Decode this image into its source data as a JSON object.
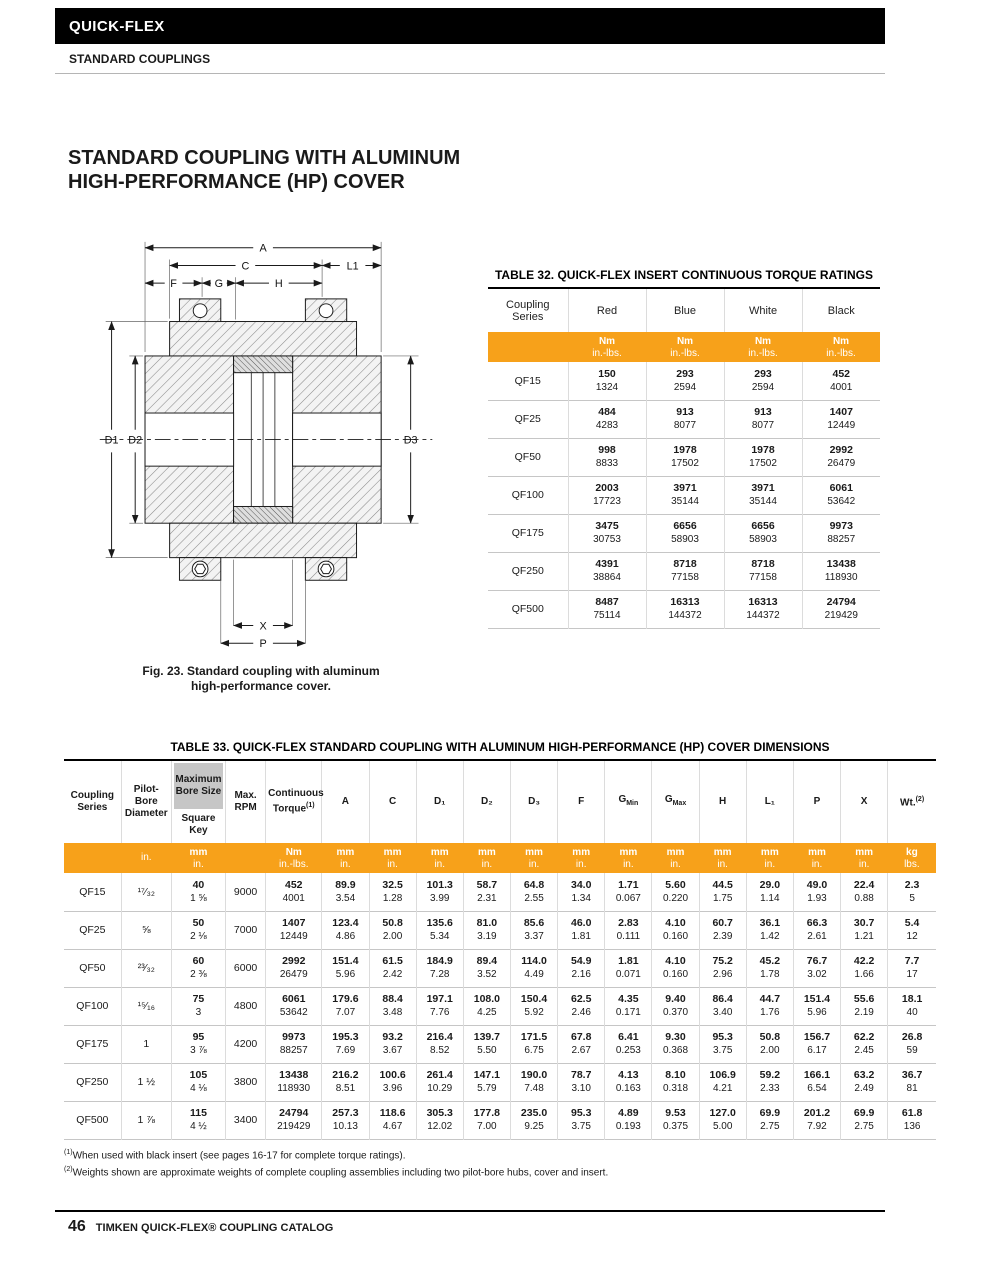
{
  "colors": {
    "accent_orange": "#F7A11A",
    "masthead_black": "#000000",
    "shaded_gray": "#C6C6C6"
  },
  "masthead": {
    "brand": "QUICK-FLEX",
    "section": "STANDARD COUPLINGS"
  },
  "page_title": {
    "line1": "STANDARD COUPLING WITH ALUMINUM",
    "line2": "HIGH-PERFORMANCE (HP) COVER"
  },
  "figure": {
    "caption_line1": "Fig. 23. Standard coupling with aluminum",
    "caption_line2": "high-performance cover.",
    "labels": {
      "a": "A",
      "c": "C",
      "l1": "L1",
      "f": "F",
      "g": "G",
      "h": "H",
      "d1": "D1",
      "d2": "D2",
      "d3": "D3",
      "x": "X",
      "p": "P"
    }
  },
  "table32": {
    "title": "TABLE 32. QUICK-FLEX INSERT CONTINUOUS TORQUE RATINGS",
    "headers": [
      "Coupling Series",
      "Red",
      "Blue",
      "White",
      "Black"
    ],
    "units": [
      [],
      [
        "Nm",
        "in.-lbs."
      ],
      [
        "Nm",
        "in.-lbs."
      ],
      [
        "Nm",
        "in.-lbs."
      ],
      [
        "Nm",
        "in.-lbs."
      ]
    ],
    "rows": [
      {
        "series": "QF15",
        "values": [
          [
            "150",
            "1324"
          ],
          [
            "293",
            "2594"
          ],
          [
            "293",
            "2594"
          ],
          [
            "452",
            "4001"
          ]
        ]
      },
      {
        "series": "QF25",
        "values": [
          [
            "484",
            "4283"
          ],
          [
            "913",
            "8077"
          ],
          [
            "913",
            "8077"
          ],
          [
            "1407",
            "12449"
          ]
        ]
      },
      {
        "series": "QF50",
        "values": [
          [
            "998",
            "8833"
          ],
          [
            "1978",
            "17502"
          ],
          [
            "1978",
            "17502"
          ],
          [
            "2992",
            "26479"
          ]
        ]
      },
      {
        "series": "QF100",
        "values": [
          [
            "2003",
            "17723"
          ],
          [
            "3971",
            "35144"
          ],
          [
            "3971",
            "35144"
          ],
          [
            "6061",
            "53642"
          ]
        ]
      },
      {
        "series": "QF175",
        "values": [
          [
            "3475",
            "30753"
          ],
          [
            "6656",
            "58903"
          ],
          [
            "6656",
            "58903"
          ],
          [
            "9973",
            "88257"
          ]
        ]
      },
      {
        "series": "QF250",
        "values": [
          [
            "4391",
            "38864"
          ],
          [
            "8718",
            "77158"
          ],
          [
            "8718",
            "77158"
          ],
          [
            "13438",
            "118930"
          ]
        ]
      },
      {
        "series": "QF500",
        "values": [
          [
            "8487",
            "75114"
          ],
          [
            "16313",
            "144372"
          ],
          [
            "16313",
            "144372"
          ],
          [
            "24794",
            "219429"
          ]
        ]
      }
    ]
  },
  "table33": {
    "title": "TABLE 33. QUICK-FLEX STANDARD COUPLING WITH ALUMINUM HIGH-PERFORMANCE (HP) COVER DIMENSIONS",
    "headers": {
      "series": "Coupling Series",
      "pilot": "Pilot-Bore Diameter",
      "bore_top": "Maximum Bore Size",
      "bore_bottom": "Square Key",
      "rpm": "Max. RPM",
      "torque": "Continuous Torque",
      "torque_sup": "(1)",
      "a": "A",
      "c": "C",
      "d1": "D₁",
      "d2": "D₂",
      "d3": "D₃",
      "f": "F",
      "g": "G",
      "gmin_sub": "Min",
      "gmax_sub": "Max",
      "h": "H",
      "l1": "L₁",
      "p": "P",
      "x": "X",
      "wt": "Wt.",
      "wt_sup": "(2)"
    },
    "units": [
      [],
      [
        "in."
      ],
      [
        "mm",
        "in."
      ],
      [],
      [
        "Nm",
        "in.-lbs."
      ],
      [
        "mm",
        "in."
      ],
      [
        "mm",
        "in."
      ],
      [
        "mm",
        "in."
      ],
      [
        "mm",
        "in."
      ],
      [
        "mm",
        "in."
      ],
      [
        "mm",
        "in."
      ],
      [
        "mm",
        "in."
      ],
      [
        "mm",
        "in."
      ],
      [
        "mm",
        "in."
      ],
      [
        "mm",
        "in."
      ],
      [
        "mm",
        "in."
      ],
      [
        "mm",
        "in."
      ],
      [
        "kg",
        "lbs."
      ]
    ],
    "rows": [
      {
        "cells": [
          "QF15",
          "¹⁷⁄₃₂",
          [
            "40",
            "1 ⅝"
          ],
          "9000",
          [
            "452",
            "4001"
          ],
          [
            "89.9",
            "3.54"
          ],
          [
            "32.5",
            "1.28"
          ],
          [
            "101.3",
            "3.99"
          ],
          [
            "58.7",
            "2.31"
          ],
          [
            "64.8",
            "2.55"
          ],
          [
            "34.0",
            "1.34"
          ],
          [
            "1.71",
            "0.067"
          ],
          [
            "5.60",
            "0.220"
          ],
          [
            "44.5",
            "1.75"
          ],
          [
            "29.0",
            "1.14"
          ],
          [
            "49.0",
            "1.93"
          ],
          [
            "22.4",
            "0.88"
          ],
          [
            "2.3",
            "5"
          ]
        ]
      },
      {
        "cells": [
          "QF25",
          "⅝",
          [
            "50",
            "2 ⅛"
          ],
          "7000",
          [
            "1407",
            "12449"
          ],
          [
            "123.4",
            "4.86"
          ],
          [
            "50.8",
            "2.00"
          ],
          [
            "135.6",
            "5.34"
          ],
          [
            "81.0",
            "3.19"
          ],
          [
            "85.6",
            "3.37"
          ],
          [
            "46.0",
            "1.81"
          ],
          [
            "2.83",
            "0.111"
          ],
          [
            "4.10",
            "0.160"
          ],
          [
            "60.7",
            "2.39"
          ],
          [
            "36.1",
            "1.42"
          ],
          [
            "66.3",
            "2.61"
          ],
          [
            "30.7",
            "1.21"
          ],
          [
            "5.4",
            "12"
          ]
        ]
      },
      {
        "cells": [
          "QF50",
          "²³⁄₃₂",
          [
            "60",
            "2 ⅜"
          ],
          "6000",
          [
            "2992",
            "26479"
          ],
          [
            "151.4",
            "5.96"
          ],
          [
            "61.5",
            "2.42"
          ],
          [
            "184.9",
            "7.28"
          ],
          [
            "89.4",
            "3.52"
          ],
          [
            "114.0",
            "4.49"
          ],
          [
            "54.9",
            "2.16"
          ],
          [
            "1.81",
            "0.071"
          ],
          [
            "4.10",
            "0.160"
          ],
          [
            "75.2",
            "2.96"
          ],
          [
            "45.2",
            "1.78"
          ],
          [
            "76.7",
            "3.02"
          ],
          [
            "42.2",
            "1.66"
          ],
          [
            "7.7",
            "17"
          ]
        ]
      },
      {
        "cells": [
          "QF100",
          "¹⁵⁄₁₆",
          [
            "75",
            "3"
          ],
          "4800",
          [
            "6061",
            "53642"
          ],
          [
            "179.6",
            "7.07"
          ],
          [
            "88.4",
            "3.48"
          ],
          [
            "197.1",
            "7.76"
          ],
          [
            "108.0",
            "4.25"
          ],
          [
            "150.4",
            "5.92"
          ],
          [
            "62.5",
            "2.46"
          ],
          [
            "4.35",
            "0.171"
          ],
          [
            "9.40",
            "0.370"
          ],
          [
            "86.4",
            "3.40"
          ],
          [
            "44.7",
            "1.76"
          ],
          [
            "151.4",
            "5.96"
          ],
          [
            "55.6",
            "2.19"
          ],
          [
            "18.1",
            "40"
          ]
        ]
      },
      {
        "cells": [
          "QF175",
          "1",
          [
            "95",
            "3 ⅞"
          ],
          "4200",
          [
            "9973",
            "88257"
          ],
          [
            "195.3",
            "7.69"
          ],
          [
            "93.2",
            "3.67"
          ],
          [
            "216.4",
            "8.52"
          ],
          [
            "139.7",
            "5.50"
          ],
          [
            "171.5",
            "6.75"
          ],
          [
            "67.8",
            "2.67"
          ],
          [
            "6.41",
            "0.253"
          ],
          [
            "9.30",
            "0.368"
          ],
          [
            "95.3",
            "3.75"
          ],
          [
            "50.8",
            "2.00"
          ],
          [
            "156.7",
            "6.17"
          ],
          [
            "62.2",
            "2.45"
          ],
          [
            "26.8",
            "59"
          ]
        ]
      },
      {
        "cells": [
          "QF250",
          "1 ½",
          [
            "105",
            "4 ⅛"
          ],
          "3800",
          [
            "13438",
            "118930"
          ],
          [
            "216.2",
            "8.51"
          ],
          [
            "100.6",
            "3.96"
          ],
          [
            "261.4",
            "10.29"
          ],
          [
            "147.1",
            "5.79"
          ],
          [
            "190.0",
            "7.48"
          ],
          [
            "78.7",
            "3.10"
          ],
          [
            "4.13",
            "0.163"
          ],
          [
            "8.10",
            "0.318"
          ],
          [
            "106.9",
            "4.21"
          ],
          [
            "59.2",
            "2.33"
          ],
          [
            "166.1",
            "6.54"
          ],
          [
            "63.2",
            "2.49"
          ],
          [
            "36.7",
            "81"
          ]
        ]
      },
      {
        "cells": [
          "QF500",
          "1 ⅞",
          [
            "115",
            "4 ½"
          ],
          "3400",
          [
            "24794",
            "219429"
          ],
          [
            "257.3",
            "10.13"
          ],
          [
            "118.6",
            "4.67"
          ],
          [
            "305.3",
            "12.02"
          ],
          [
            "177.8",
            "7.00"
          ],
          [
            "235.0",
            "9.25"
          ],
          [
            "95.3",
            "3.75"
          ],
          [
            "4.89",
            "0.193"
          ],
          [
            "9.53",
            "0.375"
          ],
          [
            "127.0",
            "5.00"
          ],
          [
            "69.9",
            "2.75"
          ],
          [
            "201.2",
            "7.92"
          ],
          [
            "69.9",
            "2.75"
          ],
          [
            "61.8",
            "136"
          ]
        ]
      }
    ]
  },
  "footnotes": {
    "fn1_sup": "(1)",
    "fn1_text": "When used with black insert (see pages 16-17 for complete torque ratings).",
    "fn2_sup": "(2)",
    "fn2_text": "Weights shown are approximate weights of complete coupling assemblies including two pilot-bore hubs, cover and insert."
  },
  "footer": {
    "page_number": "46",
    "catalog_title": "TIMKEN QUICK-FLEX® COUPLING CATALOG"
  }
}
